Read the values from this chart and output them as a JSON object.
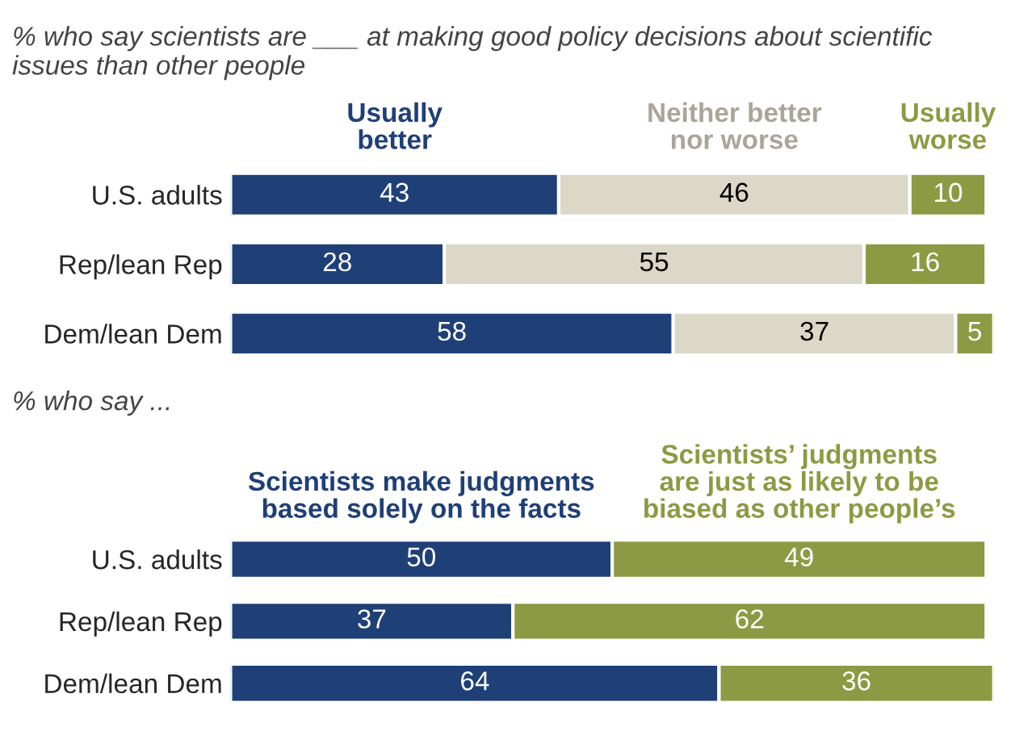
{
  "chart_data": [
    {
      "type": "bar",
      "orientation": "horizontal",
      "stacked": true,
      "data_labels": true,
      "legend": "top",
      "title": "% who say scientists are ___ at making good policy decisions about scientific issues than other people",
      "categories": [
        "U.S. adults",
        "Rep/lean Rep",
        "Dem/lean Dem"
      ],
      "series": [
        {
          "name": "Usually better",
          "color": "#1f3f77",
          "values": [
            43,
            28,
            58
          ]
        },
        {
          "name": "Neither better nor worse",
          "color": "#dcd8c8",
          "values": [
            46,
            55,
            37
          ]
        },
        {
          "name": "Usually worse",
          "color": "#8c9a43",
          "values": [
            10,
            16,
            5
          ]
        }
      ]
    },
    {
      "type": "bar",
      "orientation": "horizontal",
      "stacked": true,
      "data_labels": true,
      "legend": "top",
      "title": "% who say ...",
      "categories": [
        "U.S. adults",
        "Rep/lean Rep",
        "Dem/lean Dem"
      ],
      "series": [
        {
          "name": "Scientists make judgments based solely on the facts",
          "color": "#1f3f77",
          "values": [
            50,
            37,
            64
          ]
        },
        {
          "name": "Scientists’ judgments are just as likely to be biased as other people’s",
          "color": "#8c9a43",
          "values": [
            49,
            62,
            36
          ]
        }
      ]
    }
  ]
}
